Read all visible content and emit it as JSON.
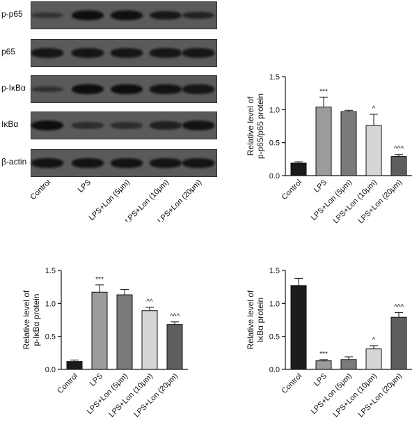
{
  "blot": {
    "rows": [
      {
        "label": "p-p65",
        "intensities": [
          0.25,
          0.95,
          0.9,
          0.75,
          0.55
        ]
      },
      {
        "label": "p65",
        "intensities": [
          0.8,
          0.8,
          0.8,
          0.8,
          0.8
        ]
      },
      {
        "label": "p-IκBα",
        "intensities": [
          0.3,
          0.95,
          0.95,
          0.85,
          0.8
        ]
      },
      {
        "label": "IκBα",
        "intensities": [
          0.95,
          0.35,
          0.35,
          0.6,
          0.85
        ]
      },
      {
        "label": "β-actin",
        "intensities": [
          0.85,
          0.85,
          0.85,
          0.85,
          0.85
        ]
      }
    ],
    "lanes": [
      "Control",
      "LPS",
      "LPS+Lon (5μm)",
      "LPS+Lon (10μm)",
      "LPS+Lon (20μm)"
    ]
  },
  "chart_data": [
    {
      "type": "bar",
      "ylabel": [
        "Relative level of",
        "p-p65/p65 protein"
      ],
      "ylim": [
        0,
        1.5
      ],
      "yticks": [
        "0.0",
        "0.5",
        "1.0",
        "1.5"
      ],
      "categories": [
        "Control",
        "LPS",
        "LPS+Lon (5μm)",
        "LPS+Lon (10μm)",
        "LPS+Lon (20μm)"
      ],
      "values": [
        0.19,
        1.04,
        0.97,
        0.76,
        0.29
      ],
      "errors": [
        0.02,
        0.15,
        0.02,
        0.17,
        0.03
      ],
      "annotations": [
        "",
        "***",
        "",
        "^",
        "^^^"
      ],
      "colors": [
        "#1b1b1b",
        "#9c9c9c",
        "#7a7a7a",
        "#d6d6d6",
        "#5e5e5e"
      ]
    },
    {
      "type": "bar",
      "ylabel": [
        "Relative level of",
        "p-IκBα protein"
      ],
      "ylim": [
        0,
        1.5
      ],
      "yticks": [
        "0.0",
        "0.5",
        "1.0",
        "1.5"
      ],
      "categories": [
        "Control",
        "LPS",
        "LPS+Lon (5μm)",
        "LPS+Lon (10μm)",
        "LPS+Lon (20μm)"
      ],
      "values": [
        0.12,
        1.17,
        1.13,
        0.89,
        0.68
      ],
      "errors": [
        0.02,
        0.11,
        0.08,
        0.05,
        0.04
      ],
      "annotations": [
        "",
        "***",
        "",
        "^^",
        "^^^"
      ],
      "colors": [
        "#1b1b1b",
        "#9c9c9c",
        "#7a7a7a",
        "#d6d6d6",
        "#5e5e5e"
      ]
    },
    {
      "type": "bar",
      "ylabel": [
        "Relative level of",
        "IκBα protein"
      ],
      "ylim": [
        0,
        1.5
      ],
      "yticks": [
        "0.0",
        "0.5",
        "1.0",
        "1.5"
      ],
      "categories": [
        "Control",
        "LPS",
        "LPS+Lon (5μm)",
        "LPS+Lon (10μm)",
        "LPS+Lon (20μm)"
      ],
      "values": [
        1.27,
        0.13,
        0.15,
        0.31,
        0.79
      ],
      "errors": [
        0.11,
        0.02,
        0.04,
        0.05,
        0.07
      ],
      "annotations": [
        "",
        "***",
        "",
        "^",
        "^^^"
      ],
      "colors": [
        "#1b1b1b",
        "#9c9c9c",
        "#7a7a7a",
        "#d6d6d6",
        "#5e5e5e"
      ]
    }
  ]
}
